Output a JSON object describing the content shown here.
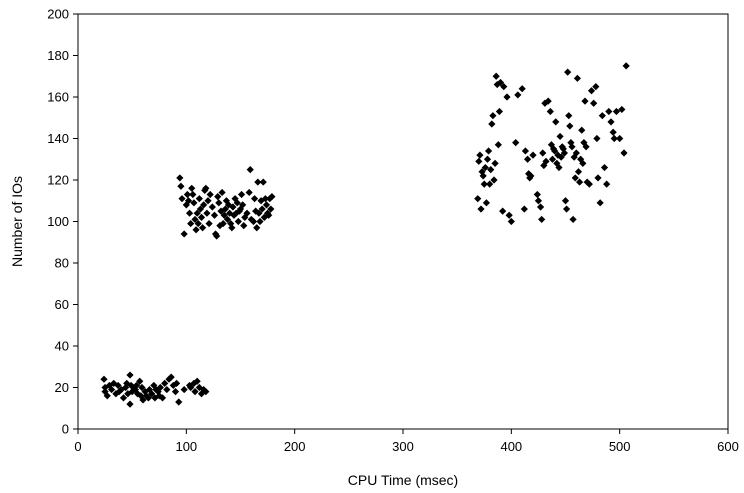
{
  "chart_data": {
    "type": "scatter",
    "title": "",
    "xlabel": "CPU Time (msec)",
    "ylabel": "Number of IOs",
    "xlim": [
      0,
      600
    ],
    "ylim": [
      0,
      200
    ],
    "xticks": [
      0,
      100,
      200,
      300,
      400,
      500,
      600
    ],
    "yticks": [
      0,
      20,
      40,
      60,
      80,
      100,
      120,
      140,
      160,
      180,
      200
    ],
    "grid": false,
    "legend": "none",
    "marker": "diamond",
    "marker_color": "#000000",
    "series": [
      {
        "points": [
          [
            24,
            24
          ],
          [
            25,
            20
          ],
          [
            25,
            18
          ],
          [
            27,
            16
          ],
          [
            29,
            21
          ],
          [
            31,
            19
          ],
          [
            33,
            22
          ],
          [
            35,
            17
          ],
          [
            37,
            21
          ],
          [
            38,
            18
          ],
          [
            40,
            19
          ],
          [
            42,
            15
          ],
          [
            44,
            20
          ],
          [
            45,
            22
          ],
          [
            46,
            17
          ],
          [
            48,
            26
          ],
          [
            48,
            12
          ],
          [
            49,
            21
          ],
          [
            50,
            18
          ],
          [
            51,
            20
          ],
          [
            53,
            19
          ],
          [
            54,
            21
          ],
          [
            55,
            17
          ],
          [
            57,
            23
          ],
          [
            58,
            16
          ],
          [
            59,
            20
          ],
          [
            60,
            14
          ],
          [
            62,
            18
          ],
          [
            63,
            16
          ],
          [
            65,
            15
          ],
          [
            66,
            19
          ],
          [
            68,
            17
          ],
          [
            70,
            21
          ],
          [
            71,
            15
          ],
          [
            72,
            19
          ],
          [
            74,
            18
          ],
          [
            75,
            16
          ],
          [
            76,
            20
          ],
          [
            78,
            15
          ],
          [
            80,
            22
          ],
          [
            82,
            19
          ],
          [
            84,
            24
          ],
          [
            86,
            25
          ],
          [
            88,
            21
          ],
          [
            90,
            18
          ],
          [
            91,
            22
          ],
          [
            93,
            13
          ],
          [
            98,
            19
          ],
          [
            103,
            21
          ],
          [
            104,
            20
          ],
          [
            107,
            22
          ],
          [
            108,
            18
          ],
          [
            110,
            23
          ],
          [
            112,
            20
          ],
          [
            114,
            17
          ],
          [
            116,
            19
          ],
          [
            118,
            18
          ],
          [
            94,
            121
          ],
          [
            95,
            117
          ],
          [
            96,
            111
          ],
          [
            98,
            94
          ],
          [
            100,
            108
          ],
          [
            101,
            113
          ],
          [
            102,
            110
          ],
          [
            103,
            104
          ],
          [
            104,
            99
          ],
          [
            105,
            116
          ],
          [
            106,
            113
          ],
          [
            107,
            109
          ],
          [
            108,
            101
          ],
          [
            109,
            96
          ],
          [
            110,
            104
          ],
          [
            111,
            99
          ],
          [
            112,
            111
          ],
          [
            113,
            106
          ],
          [
            114,
            102
          ],
          [
            115,
            97
          ],
          [
            116,
            108
          ],
          [
            117,
            115
          ],
          [
            118,
            116
          ],
          [
            119,
            104
          ],
          [
            120,
            110
          ],
          [
            121,
            99
          ],
          [
            122,
            113
          ],
          [
            124,
            107
          ],
          [
            126,
            103
          ],
          [
            127,
            94
          ],
          [
            128,
            93
          ],
          [
            129,
            112
          ],
          [
            130,
            109
          ],
          [
            131,
            98
          ],
          [
            132,
            105
          ],
          [
            133,
            114
          ],
          [
            134,
            99
          ],
          [
            135,
            103
          ],
          [
            136,
            106
          ],
          [
            137,
            110
          ],
          [
            138,
            101
          ],
          [
            139,
            108
          ],
          [
            140,
            104
          ],
          [
            141,
            99
          ],
          [
            142,
            97
          ],
          [
            143,
            107
          ],
          [
            144,
            103
          ],
          [
            145,
            111
          ],
          [
            146,
            104
          ],
          [
            147,
            109
          ],
          [
            148,
            100
          ],
          [
            149,
            105
          ],
          [
            150,
            106
          ],
          [
            151,
            113
          ],
          [
            152,
            108
          ],
          [
            153,
            98
          ],
          [
            154,
            102
          ],
          [
            156,
            104
          ],
          [
            158,
            114
          ],
          [
            159,
            125
          ],
          [
            160,
            101
          ],
          [
            162,
            100
          ],
          [
            163,
            111
          ],
          [
            164,
            105
          ],
          [
            165,
            97
          ],
          [
            166,
            119
          ],
          [
            167,
            104
          ],
          [
            168,
            100
          ],
          [
            169,
            110
          ],
          [
            170,
            106
          ],
          [
            171,
            119
          ],
          [
            172,
            102
          ],
          [
            173,
            111
          ],
          [
            174,
            108
          ],
          [
            175,
            104
          ],
          [
            176,
            103
          ],
          [
            177,
            111
          ],
          [
            178,
            106
          ],
          [
            179,
            112
          ],
          [
            369,
            111
          ],
          [
            370,
            129
          ],
          [
            371,
            132
          ],
          [
            372,
            106
          ],
          [
            373,
            124
          ],
          [
            374,
            122
          ],
          [
            375,
            118
          ],
          [
            376,
            126
          ],
          [
            377,
            109
          ],
          [
            378,
            130
          ],
          [
            379,
            134
          ],
          [
            380,
            118
          ],
          [
            381,
            125
          ],
          [
            382,
            147
          ],
          [
            383,
            151
          ],
          [
            384,
            120
          ],
          [
            385,
            128
          ],
          [
            386,
            170
          ],
          [
            387,
            166
          ],
          [
            388,
            137
          ],
          [
            389,
            153
          ],
          [
            390,
            167
          ],
          [
            392,
            105
          ],
          [
            393,
            165
          ],
          [
            396,
            160
          ],
          [
            398,
            103
          ],
          [
            400,
            100
          ],
          [
            404,
            138
          ],
          [
            406,
            161
          ],
          [
            410,
            164
          ],
          [
            412,
            106
          ],
          [
            413,
            134
          ],
          [
            415,
            130
          ],
          [
            416,
            123
          ],
          [
            417,
            121
          ],
          [
            418,
            122
          ],
          [
            420,
            132
          ],
          [
            424,
            113
          ],
          [
            425,
            110
          ],
          [
            427,
            107
          ],
          [
            428,
            101
          ],
          [
            429,
            133
          ],
          [
            430,
            127
          ],
          [
            431,
            157
          ],
          [
            432,
            129
          ],
          [
            434,
            158
          ],
          [
            436,
            153
          ],
          [
            437,
            137
          ],
          [
            438,
            130
          ],
          [
            439,
            135
          ],
          [
            440,
            134
          ],
          [
            441,
            148
          ],
          [
            442,
            128
          ],
          [
            443,
            132
          ],
          [
            444,
            126
          ],
          [
            445,
            141
          ],
          [
            446,
            131
          ],
          [
            447,
            136
          ],
          [
            448,
            135
          ],
          [
            449,
            133
          ],
          [
            450,
            110
          ],
          [
            451,
            106
          ],
          [
            452,
            172
          ],
          [
            453,
            151
          ],
          [
            454,
            146
          ],
          [
            455,
            138
          ],
          [
            456,
            136
          ],
          [
            457,
            101
          ],
          [
            458,
            131
          ],
          [
            459,
            121
          ],
          [
            460,
            133
          ],
          [
            461,
            169
          ],
          [
            462,
            124
          ],
          [
            463,
            119
          ],
          [
            464,
            130
          ],
          [
            465,
            144
          ],
          [
            466,
            128
          ],
          [
            467,
            138
          ],
          [
            468,
            158
          ],
          [
            469,
            136
          ],
          [
            470,
            119
          ],
          [
            472,
            118
          ],
          [
            474,
            163
          ],
          [
            476,
            157
          ],
          [
            478,
            165
          ],
          [
            479,
            140
          ],
          [
            480,
            121
          ],
          [
            482,
            109
          ],
          [
            484,
            151
          ],
          [
            486,
            126
          ],
          [
            488,
            118
          ],
          [
            490,
            153
          ],
          [
            492,
            148
          ],
          [
            494,
            143
          ],
          [
            495,
            140
          ],
          [
            497,
            153
          ],
          [
            500,
            140
          ],
          [
            502,
            154
          ],
          [
            504,
            133
          ],
          [
            506,
            175
          ]
        ]
      }
    ]
  }
}
